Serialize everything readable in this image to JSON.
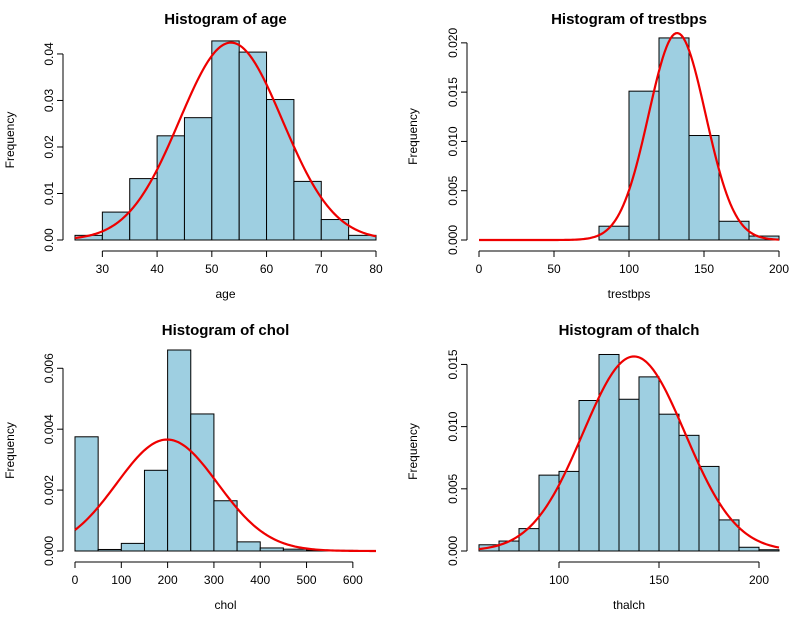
{
  "figure": {
    "panel_count": 4,
    "colors": {
      "bar_fill": "#9ECFE1",
      "bar_stroke": "#000000",
      "curve": "#EE0000"
    }
  },
  "chart_data": [
    {
      "type": "bar",
      "title": "Histogram of age",
      "xlabel": "age",
      "ylabel": "Frequency",
      "xlim": [
        25,
        80
      ],
      "ylim": [
        0,
        0.043
      ],
      "x_ticks": [
        30,
        40,
        50,
        60,
        70,
        80
      ],
      "y_ticks": [
        "0.00",
        "0.01",
        "0.02",
        "0.03",
        "0.04"
      ],
      "bins": [
        [
          25,
          30
        ],
        [
          30,
          35
        ],
        [
          35,
          40
        ],
        [
          40,
          45
        ],
        [
          45,
          50
        ],
        [
          50,
          55
        ],
        [
          55,
          60
        ],
        [
          60,
          65
        ],
        [
          65,
          70
        ],
        [
          70,
          75
        ],
        [
          75,
          80
        ]
      ],
      "values": [
        0.001,
        0.006,
        0.0132,
        0.0224,
        0.0263,
        0.0428,
        0.0404,
        0.0302,
        0.0126,
        0.0044,
        0.001
      ],
      "overlay_curve": {
        "type": "normal_density",
        "mean": 53.5,
        "sd": 9.4
      }
    },
    {
      "type": "bar",
      "title": "Histogram of trestbps",
      "xlabel": "trestbps",
      "ylabel": "Frequency",
      "xlim": [
        0,
        200
      ],
      "ylim": [
        0,
        0.021
      ],
      "x_ticks": [
        0,
        50,
        100,
        150,
        200
      ],
      "y_ticks": [
        "0.000",
        "0.005",
        "0.010",
        "0.015",
        "0.020"
      ],
      "bins": [
        [
          80,
          100
        ],
        [
          100,
          120
        ],
        [
          120,
          140
        ],
        [
          140,
          160
        ],
        [
          160,
          180
        ],
        [
          180,
          200
        ]
      ],
      "values": [
        0.0014,
        0.0151,
        0.0205,
        0.0106,
        0.0019,
        0.0004
      ],
      "overlay_curve": {
        "type": "normal_density",
        "mean": 132.1,
        "sd": 19.0
      }
    },
    {
      "type": "bar",
      "title": "Histogram of chol",
      "xlabel": "chol",
      "ylabel": "Frequency",
      "xlim": [
        0,
        650
      ],
      "ylim": [
        0,
        0.0066
      ],
      "x_ticks": [
        0,
        100,
        200,
        300,
        400,
        500,
        600
      ],
      "y_ticks": [
        "0.000",
        "0.002",
        "0.004",
        "0.006"
      ],
      "bins": [
        [
          0,
          50
        ],
        [
          50,
          100
        ],
        [
          100,
          150
        ],
        [
          150,
          200
        ],
        [
          200,
          250
        ],
        [
          250,
          300
        ],
        [
          300,
          350
        ],
        [
          350,
          400
        ],
        [
          400,
          450
        ],
        [
          450,
          500
        ],
        [
          500,
          550
        ],
        [
          550,
          600
        ]
      ],
      "values": [
        0.00375,
        5e-05,
        0.00025,
        0.00265,
        0.0066,
        0.0045,
        0.00165,
        0.0003,
        0.0001,
        6e-05,
        3e-05,
        2e-05
      ],
      "overlay_curve": {
        "type": "normal_density",
        "mean": 199,
        "sd": 109
      }
    },
    {
      "type": "bar",
      "title": "Histogram of thalch",
      "xlabel": "thalch",
      "ylabel": "Frequency",
      "xlim": [
        60,
        210
      ],
      "ylim": [
        0,
        0.016
      ],
      "x_ticks": [
        100,
        150,
        200
      ],
      "y_ticks": [
        "0.000",
        "0.005",
        "0.010",
        "0.015"
      ],
      "bins": [
        [
          60,
          70
        ],
        [
          70,
          80
        ],
        [
          80,
          90
        ],
        [
          90,
          100
        ],
        [
          100,
          110
        ],
        [
          110,
          120
        ],
        [
          120,
          130
        ],
        [
          130,
          140
        ],
        [
          140,
          150
        ],
        [
          150,
          160
        ],
        [
          160,
          170
        ],
        [
          170,
          180
        ],
        [
          180,
          190
        ],
        [
          190,
          200
        ],
        [
          200,
          210
        ]
      ],
      "values": [
        0.0005,
        0.0008,
        0.0018,
        0.0061,
        0.0064,
        0.0121,
        0.0158,
        0.0122,
        0.014,
        0.011,
        0.0093,
        0.0068,
        0.0025,
        0.0003,
        0.0001
      ],
      "overlay_curve": {
        "type": "normal_density",
        "mean": 137.5,
        "sd": 25.5
      }
    }
  ]
}
